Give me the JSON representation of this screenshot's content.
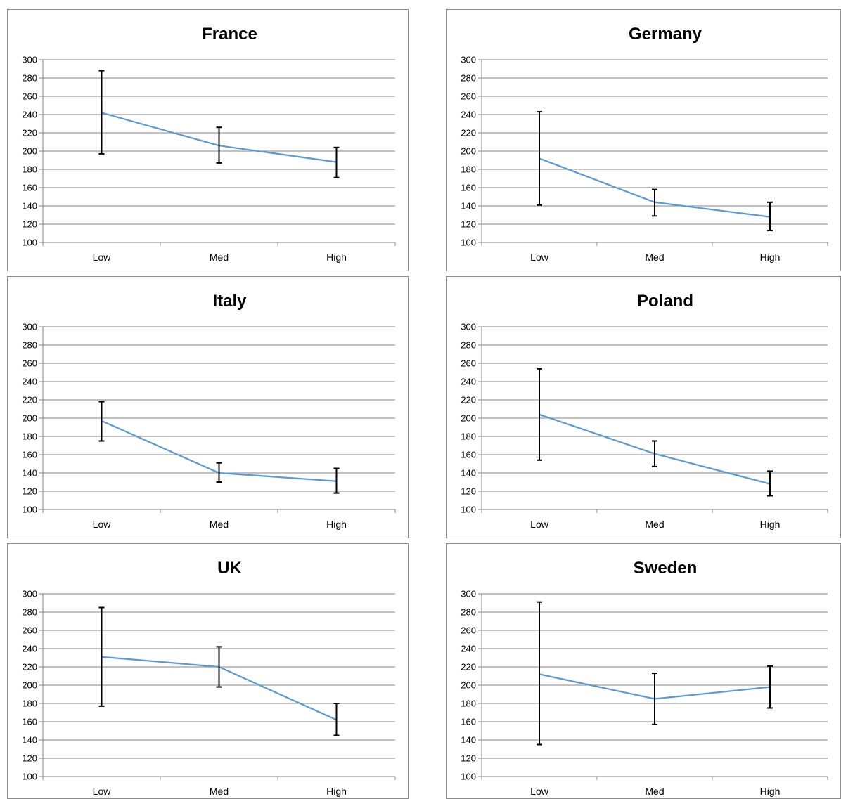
{
  "chart_data": [
    {
      "type": "line",
      "title": "France",
      "categories": [
        "Low",
        "Med",
        "High"
      ],
      "series": [
        {
          "values": [
            242,
            206,
            188
          ],
          "error_low": [
            197,
            187,
            171
          ],
          "error_high": [
            288,
            226,
            204
          ]
        }
      ],
      "y_ticks": [
        "100",
        "120",
        "140",
        "160",
        "180",
        "200",
        "220",
        "240",
        "260",
        "280",
        "300"
      ],
      "ylim": [
        100,
        300
      ],
      "grid": true,
      "legend": "none",
      "colors": {
        "line": "#5b9bd5",
        "error_bar": "#000000",
        "grid": "#868686"
      }
    },
    {
      "type": "line",
      "title": "Germany",
      "categories": [
        "Low",
        "Med",
        "High"
      ],
      "series": [
        {
          "values": [
            192,
            144,
            128
          ],
          "error_low": [
            141,
            129,
            113
          ],
          "error_high": [
            243,
            158,
            144
          ]
        }
      ],
      "y_ticks": [
        "100",
        "120",
        "140",
        "160",
        "180",
        "200",
        "220",
        "240",
        "260",
        "280",
        "300"
      ],
      "ylim": [
        100,
        300
      ],
      "grid": true,
      "legend": "none",
      "colors": {
        "line": "#5b9bd5",
        "error_bar": "#000000",
        "grid": "#868686"
      }
    },
    {
      "type": "line",
      "title": "Italy",
      "categories": [
        "Low",
        "Med",
        "High"
      ],
      "series": [
        {
          "values": [
            197,
            140,
            131
          ],
          "error_low": [
            175,
            130,
            118
          ],
          "error_high": [
            218,
            151,
            145
          ]
        }
      ],
      "y_ticks": [
        "100",
        "120",
        "140",
        "160",
        "180",
        "200",
        "220",
        "240",
        "260",
        "280",
        "300"
      ],
      "ylim": [
        100,
        300
      ],
      "grid": true,
      "legend": "none",
      "colors": {
        "line": "#5b9bd5",
        "error_bar": "#000000",
        "grid": "#868686"
      }
    },
    {
      "type": "line",
      "title": "Poland",
      "categories": [
        "Low",
        "Med",
        "High"
      ],
      "series": [
        {
          "values": [
            204,
            161,
            128
          ],
          "error_low": [
            154,
            147,
            115
          ],
          "error_high": [
            254,
            175,
            142
          ]
        }
      ],
      "y_ticks": [
        "100",
        "120",
        "140",
        "160",
        "180",
        "200",
        "220",
        "240",
        "260",
        "280",
        "300"
      ],
      "ylim": [
        100,
        300
      ],
      "grid": true,
      "legend": "none",
      "colors": {
        "line": "#5b9bd5",
        "error_bar": "#000000",
        "grid": "#868686"
      }
    },
    {
      "type": "line",
      "title": "UK",
      "categories": [
        "Low",
        "Med",
        "High"
      ],
      "series": [
        {
          "values": [
            231,
            220,
            162
          ],
          "error_low": [
            177,
            198,
            145
          ],
          "error_high": [
            285,
            242,
            180
          ]
        }
      ],
      "y_ticks": [
        "100",
        "120",
        "140",
        "160",
        "180",
        "200",
        "220",
        "240",
        "260",
        "280",
        "300"
      ],
      "ylim": [
        100,
        300
      ],
      "grid": true,
      "legend": "none",
      "colors": {
        "line": "#5b9bd5",
        "error_bar": "#000000",
        "grid": "#868686"
      }
    },
    {
      "type": "line",
      "title": "Sweden",
      "categories": [
        "Low",
        "Med",
        "High"
      ],
      "series": [
        {
          "values": [
            212,
            185,
            198
          ],
          "error_low": [
            135,
            157,
            175
          ],
          "error_high": [
            291,
            213,
            221
          ]
        }
      ],
      "y_ticks": [
        "100",
        "120",
        "140",
        "160",
        "180",
        "200",
        "220",
        "240",
        "260",
        "280",
        "300"
      ],
      "ylim": [
        100,
        300
      ],
      "grid": true,
      "legend": "none",
      "colors": {
        "line": "#5b9bd5",
        "error_bar": "#000000",
        "grid": "#868686"
      }
    }
  ]
}
